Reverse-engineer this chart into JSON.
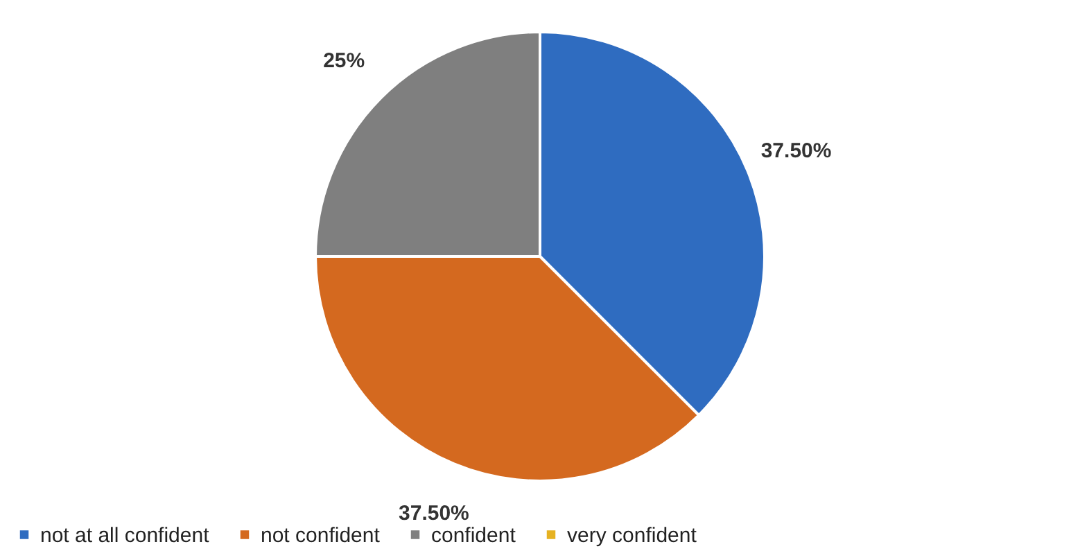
{
  "chart_data": {
    "type": "pie",
    "categories": [
      "not at all confident",
      "not confident",
      "confident",
      "very confident"
    ],
    "values": [
      37.5,
      37.5,
      25,
      0
    ],
    "value_labels": [
      "37.50%",
      "37.50%",
      "25%",
      null
    ],
    "colors": [
      "#2f6cc0",
      "#d4691f",
      "#7f7f7f",
      "#e6b222"
    ],
    "legend": "bottom"
  }
}
